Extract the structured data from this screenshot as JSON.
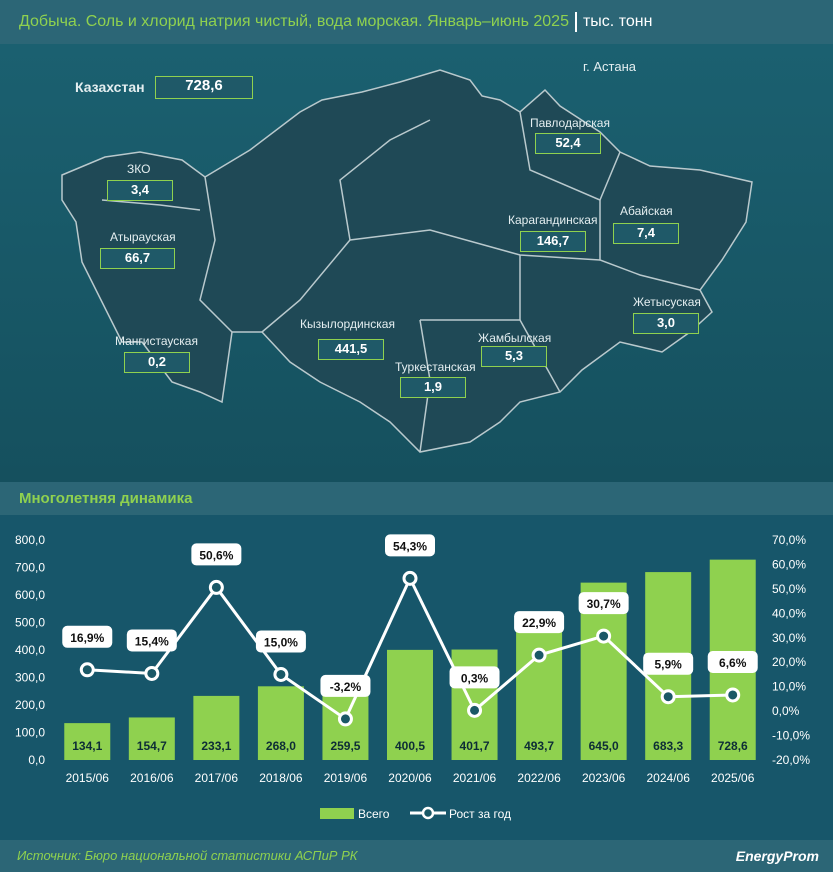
{
  "header": {
    "title": "Добыча. Соль и хлорид натрия чистый, вода морская. Январь–июнь 2025",
    "unit": "тыс. тонн"
  },
  "map": {
    "total": {
      "label": "Казахстан",
      "value": "728,6"
    },
    "capital": "г. Астана",
    "regions": [
      {
        "name": "ЗКО",
        "value": "3,4"
      },
      {
        "name": "Атырауская",
        "value": "66,7"
      },
      {
        "name": "Мангистауская",
        "value": "0,2"
      },
      {
        "name": "Кызылординская",
        "value": "441,5"
      },
      {
        "name": "Туркестанская",
        "value": "1,9"
      },
      {
        "name": "Жамбылская",
        "value": "5,3"
      },
      {
        "name": "Карагандинская",
        "value": "146,7"
      },
      {
        "name": "Павлодарская",
        "value": "52,4"
      },
      {
        "name": "Абайская",
        "value": "7,4"
      },
      {
        "name": "Жетысуская",
        "value": "3,0"
      }
    ]
  },
  "section_title": "Многолетняя динамика",
  "chart_data": {
    "type": "bar",
    "categories": [
      "2015/06",
      "2016/06",
      "2017/06",
      "2018/06",
      "2019/06",
      "2020/06",
      "2021/06",
      "2022/06",
      "2023/06",
      "2024/06",
      "2025/06"
    ],
    "series": [
      {
        "name": "Всего",
        "type": "bar",
        "axis": "left",
        "values": [
          134.1,
          154.7,
          233.1,
          268.0,
          259.5,
          400.5,
          401.7,
          493.7,
          645.0,
          683.3,
          728.6
        ],
        "labels": [
          "134,1",
          "154,7",
          "233,1",
          "268,0",
          "259,5",
          "400,5",
          "401,7",
          "493,7",
          "645,0",
          "683,3",
          "728,6"
        ]
      },
      {
        "name": "Рост за год",
        "type": "line",
        "axis": "right",
        "values": [
          16.9,
          15.4,
          50.6,
          15.0,
          -3.2,
          54.3,
          0.3,
          22.9,
          30.7,
          5.9,
          6.6
        ],
        "labels": [
          "16,9%",
          "15,4%",
          "50,6%",
          "15,0%",
          "-3,2%",
          "54,3%",
          "0,3%",
          "22,9%",
          "30,7%",
          "5,9%",
          "6,6%"
        ]
      }
    ],
    "ylim": [
      0,
      800
    ],
    "y2lim": [
      -20,
      70
    ],
    "yticks": [
      "0,0",
      "100,0",
      "200,0",
      "300,0",
      "400,0",
      "500,0",
      "600,0",
      "700,0",
      "800,0"
    ],
    "y2ticks": [
      "-20,0%",
      "-10,0%",
      "0,0%",
      "10,0%",
      "20,0%",
      "30,0%",
      "40,0%",
      "50,0%",
      "60,0%",
      "70,0%"
    ],
    "legend": "bottom",
    "colors": {
      "bar": "#8fd14f",
      "line": "#ffffff"
    }
  },
  "footer": {
    "source": "Источник: Бюро национальной статистики АСПиР РК",
    "brand": "EnergyProm"
  }
}
